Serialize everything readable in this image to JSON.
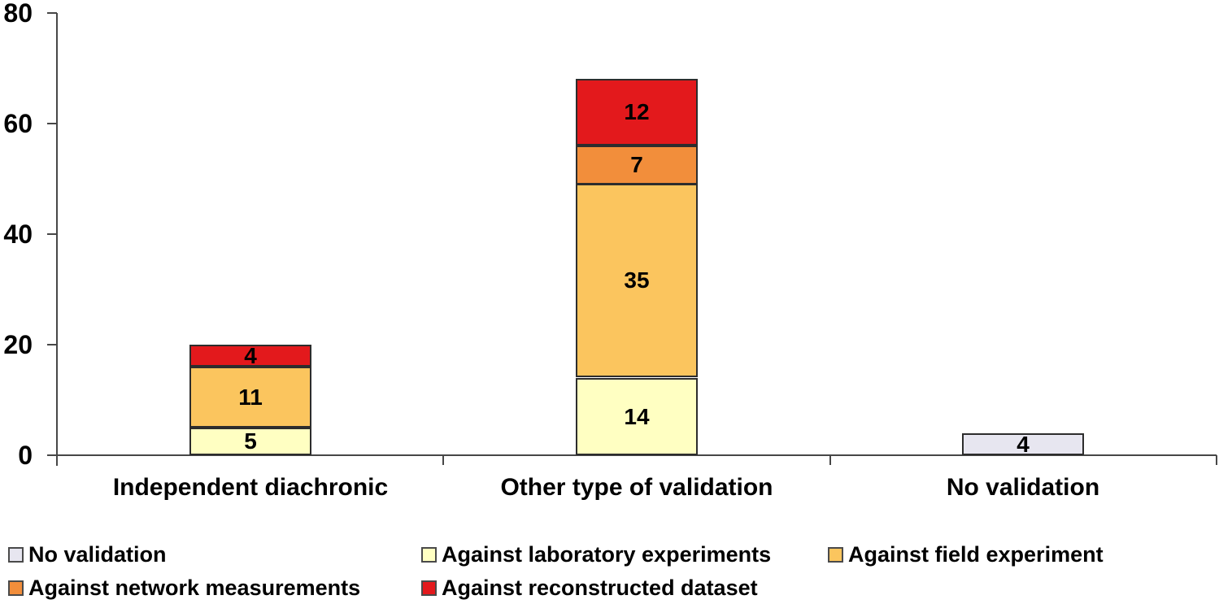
{
  "chart_data": {
    "type": "bar",
    "stacked": true,
    "title": "",
    "xlabel": "",
    "ylabel": "",
    "categories": [
      "Independent diachronic",
      "Other type of validation",
      "No validation"
    ],
    "series": [
      {
        "name": "No validation",
        "color": "#E7E6F0",
        "values": [
          0,
          0,
          4
        ]
      },
      {
        "name": "Against laboratory experiments",
        "color": "#FFFFC2",
        "values": [
          5,
          14,
          0
        ]
      },
      {
        "name": "Against field experiment",
        "color": "#FBC55E",
        "values": [
          11,
          35,
          0
        ]
      },
      {
        "name": "Against network measurements",
        "color": "#F28E3B",
        "values": [
          0,
          7,
          0
        ]
      },
      {
        "name": "Against reconstructed dataset",
        "color": "#E3191C",
        "values": [
          4,
          12,
          0
        ]
      }
    ],
    "bar_totals": [
      20,
      68,
      4
    ],
    "y_axis": {
      "min": 0,
      "max": 80,
      "ticks": [
        0,
        20,
        40,
        60,
        80
      ]
    },
    "grid": "off",
    "legend_position": "bottom",
    "legend_rows": [
      [
        0,
        1,
        2
      ],
      [
        3,
        4
      ]
    ],
    "show_value_labels": true,
    "colors": {
      "background": "#FFFFFF",
      "axis": "#474747",
      "segment_border": "#2D2D2D",
      "text": "#000000"
    }
  }
}
